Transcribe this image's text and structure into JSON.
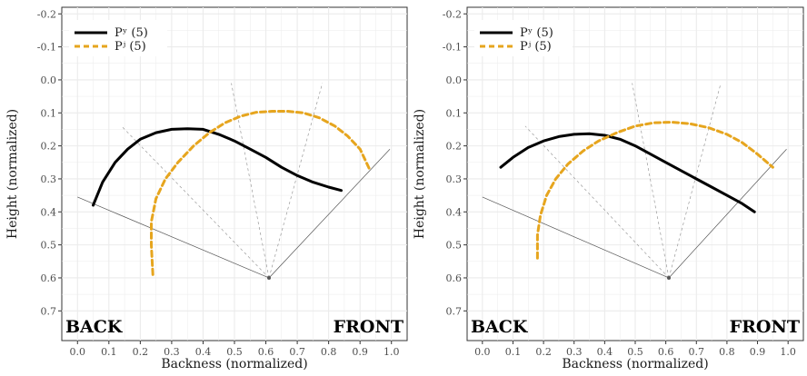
{
  "chart_data": [
    {
      "type": "line",
      "xlabel": "Backness (normalized)",
      "ylabel": "Height (normalized)",
      "xlim": [
        -0.05,
        1.05
      ],
      "ylim": [
        -0.22,
        0.79
      ],
      "y_reversed": true,
      "x_ticks": [
        0.0,
        0.1,
        0.2,
        0.3,
        0.4,
        0.5,
        0.6,
        0.7,
        0.8,
        0.9,
        1.0
      ],
      "x_tick_labels": [
        "0.0",
        "0.1",
        "0.2",
        "0.3",
        "0.4",
        "0.5",
        "0.6",
        "0.7",
        "0.8",
        "0.9",
        "1.0"
      ],
      "y_ticks": [
        -0.2,
        -0.1,
        0.0,
        0.1,
        0.2,
        0.3,
        0.4,
        0.5,
        0.6,
        0.7
      ],
      "y_tick_labels": [
        "-0.2",
        "-0.1",
        "0.0",
        "0.1",
        "0.2",
        "0.3",
        "0.4",
        "0.5",
        "0.6",
        "0.7"
      ],
      "grid": true,
      "legend_position": "top-left",
      "corner_labels": {
        "left": "BACK",
        "right": "FRONT"
      },
      "series": [
        {
          "name": "Pʸ (5)",
          "color": "#000000",
          "style": "solid",
          "x": [
            0.05,
            0.08,
            0.12,
            0.16,
            0.2,
            0.25,
            0.3,
            0.35,
            0.4,
            0.45,
            0.5,
            0.55,
            0.6,
            0.65,
            0.7,
            0.75,
            0.8,
            0.84
          ],
          "y": [
            0.38,
            0.31,
            0.25,
            0.21,
            0.18,
            0.16,
            0.15,
            0.148,
            0.15,
            0.165,
            0.185,
            0.21,
            0.235,
            0.265,
            0.29,
            0.31,
            0.325,
            0.335
          ]
        },
        {
          "name": "Pʲ (5)",
          "color": "#E6A51E",
          "style": "dashed",
          "x": [
            0.24,
            0.235,
            0.235,
            0.25,
            0.28,
            0.32,
            0.37,
            0.42,
            0.47,
            0.52,
            0.57,
            0.62,
            0.67,
            0.72,
            0.77,
            0.82,
            0.86,
            0.9,
            0.93
          ],
          "y": [
            0.59,
            0.5,
            0.43,
            0.36,
            0.3,
            0.25,
            0.2,
            0.16,
            0.13,
            0.11,
            0.098,
            0.095,
            0.095,
            0.1,
            0.115,
            0.14,
            0.17,
            0.21,
            0.27
          ]
        }
      ],
      "reference_lines": {
        "apex": [
          0.61,
          0.6
        ],
        "left_end": [
          0.0,
          0.355
        ],
        "right_end": [
          0.995,
          0.21
        ],
        "dashed_ends": [
          [
            0.14,
            0.14
          ],
          [
            0.49,
            0.01
          ],
          [
            0.78,
            0.01
          ]
        ]
      }
    },
    {
      "type": "line",
      "xlabel": "Backness (normalized)",
      "ylabel": "Height (normalized)",
      "xlim": [
        -0.05,
        1.05
      ],
      "ylim": [
        -0.22,
        0.79
      ],
      "y_reversed": true,
      "x_ticks": [
        0.0,
        0.1,
        0.2,
        0.3,
        0.4,
        0.5,
        0.6,
        0.7,
        0.8,
        0.9,
        1.0
      ],
      "x_tick_labels": [
        "0.0",
        "0.1",
        "0.2",
        "0.3",
        "0.4",
        "0.5",
        "0.6",
        "0.7",
        "0.8",
        "0.9",
        "1.0"
      ],
      "y_ticks": [
        -0.2,
        -0.1,
        0.0,
        0.1,
        0.2,
        0.3,
        0.4,
        0.5,
        0.6,
        0.7
      ],
      "y_tick_labels": [
        "-0.2",
        "-0.1",
        "0.0",
        "0.1",
        "0.2",
        "0.3",
        "0.4",
        "0.5",
        "0.6",
        "0.7"
      ],
      "grid": true,
      "legend_position": "top-left",
      "corner_labels": {
        "left": "BACK",
        "right": "FRONT"
      },
      "series": [
        {
          "name": "Pʸ (5)",
          "color": "#000000",
          "style": "solid",
          "x": [
            0.06,
            0.1,
            0.15,
            0.2,
            0.25,
            0.3,
            0.35,
            0.4,
            0.45,
            0.5,
            0.55,
            0.6,
            0.65,
            0.7,
            0.75,
            0.8,
            0.85,
            0.89
          ],
          "y": [
            0.265,
            0.235,
            0.205,
            0.185,
            0.172,
            0.165,
            0.163,
            0.168,
            0.18,
            0.2,
            0.225,
            0.25,
            0.275,
            0.3,
            0.325,
            0.35,
            0.375,
            0.4
          ]
        },
        {
          "name": "Pʲ (5)",
          "color": "#E6A51E",
          "style": "dashed",
          "x": [
            0.18,
            0.18,
            0.19,
            0.21,
            0.24,
            0.28,
            0.33,
            0.38,
            0.44,
            0.5,
            0.56,
            0.62,
            0.68,
            0.74,
            0.8,
            0.85,
            0.9,
            0.95
          ],
          "y": [
            0.54,
            0.47,
            0.41,
            0.35,
            0.3,
            0.255,
            0.215,
            0.185,
            0.16,
            0.14,
            0.13,
            0.128,
            0.133,
            0.145,
            0.165,
            0.19,
            0.225,
            0.265
          ]
        }
      ],
      "reference_lines": {
        "apex": [
          0.61,
          0.6
        ],
        "left_end": [
          0.0,
          0.355
        ],
        "right_end": [
          0.995,
          0.21
        ],
        "dashed_ends": [
          [
            0.14,
            0.14
          ],
          [
            0.49,
            0.01
          ],
          [
            0.78,
            0.01
          ]
        ]
      }
    }
  ]
}
